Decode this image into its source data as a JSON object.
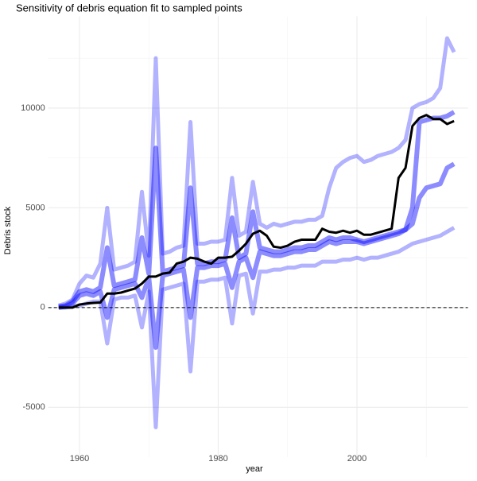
{
  "chart_data": {
    "type": "line",
    "title": "Sensitivity of debris equation fit to sampled points",
    "x_label": "year",
    "y_label": "Debris stock",
    "x": [
      1957,
      1958,
      1959,
      1960,
      1961,
      1962,
      1963,
      1964,
      1965,
      1966,
      1967,
      1968,
      1969,
      1970,
      1971,
      1972,
      1973,
      1974,
      1975,
      1976,
      1977,
      1978,
      1979,
      1980,
      1981,
      1982,
      1983,
      1984,
      1985,
      1986,
      1987,
      1988,
      1989,
      1990,
      1991,
      1992,
      1993,
      1994,
      1995,
      1996,
      1997,
      1998,
      1999,
      2000,
      2001,
      2002,
      2003,
      2004,
      2005,
      2006,
      2007,
      2008,
      2009,
      2010,
      2011,
      2012,
      2013,
      2014
    ],
    "series": [
      {
        "color": "#0000ff",
        "opacity": 0.3,
        "width": 5,
        "values": [
          100,
          200,
          400,
          1200,
          1600,
          1500,
          2200,
          5000,
          1900,
          2000,
          2100,
          2300,
          5800,
          2600,
          12500,
          2700,
          2800,
          3000,
          3100,
          9300,
          3200,
          3200,
          3300,
          3300,
          3400,
          6500,
          3600,
          3800,
          6300,
          4200,
          4000,
          4200,
          4100,
          4200,
          4300,
          4300,
          4400,
          4400,
          4600,
          6000,
          7000,
          7300,
          7500,
          7600,
          7300,
          7400,
          7600,
          7700,
          7800,
          8000,
          8400,
          10000,
          10200,
          10300,
          10500,
          11000,
          13500,
          12800
        ]
      },
      {
        "color": "#0000ff",
        "opacity": 0.3,
        "width": 5,
        "values": [
          0,
          0,
          50,
          100,
          200,
          300,
          300,
          -1800,
          400,
          500,
          500,
          600,
          -1000,
          800,
          -6000,
          900,
          1000,
          1100,
          1200,
          -3200,
          1300,
          1300,
          1400,
          1400,
          1500,
          -800,
          1600,
          1700,
          -300,
          1800,
          1800,
          1900,
          1900,
          2000,
          2000,
          2100,
          2100,
          2100,
          2300,
          2300,
          2300,
          2400,
          2400,
          2500,
          2400,
          2500,
          2500,
          2600,
          2700,
          2800,
          3000,
          3200,
          3300,
          3400,
          3500,
          3600,
          3800,
          4000
        ]
      },
      {
        "color": "#0000ff",
        "opacity": 0.45,
        "width": 6,
        "values": [
          50,
          100,
          300,
          800,
          900,
          800,
          1000,
          3000,
          1100,
          1200,
          1300,
          1400,
          3500,
          1700,
          8000,
          1800,
          1900,
          2000,
          2100,
          6000,
          2200,
          2200,
          2300,
          2300,
          2400,
          4500,
          2500,
          2700,
          4800,
          3000,
          2900,
          2800,
          2800,
          2900,
          3000,
          3000,
          3100,
          3100,
          3300,
          3500,
          3400,
          3500,
          3500,
          3400,
          3300,
          3400,
          3500,
          3600,
          3700,
          3800,
          3900,
          4200,
          5500,
          6000,
          6100,
          6200,
          7000,
          7200
        ]
      },
      {
        "color": "#0000ff",
        "opacity": 0.45,
        "width": 6,
        "values": [
          0,
          50,
          200,
          600,
          700,
          600,
          800,
          -500,
          900,
          1000,
          1100,
          1200,
          500,
          1500,
          -2000,
          1600,
          1700,
          1800,
          1900,
          -500,
          2000,
          2000,
          2100,
          2100,
          2200,
          1000,
          2300,
          2500,
          1500,
          2800,
          2700,
          2600,
          2600,
          2700,
          2800,
          2800,
          2900,
          2900,
          3100,
          3300,
          3200,
          3300,
          3300,
          3300,
          3200,
          3300,
          3400,
          3500,
          3600,
          3700,
          3900,
          5000,
          9300,
          9400,
          9500,
          9500,
          9600,
          9800
        ]
      },
      {
        "color": "#000000",
        "opacity": 1,
        "width": 3,
        "values": [
          0,
          0,
          0,
          150,
          200,
          230,
          250,
          700,
          700,
          750,
          850,
          950,
          1200,
          1550,
          1550,
          1700,
          1750,
          2200,
          2300,
          2500,
          2450,
          2300,
          2200,
          2500,
          2500,
          2550,
          2850,
          3200,
          3700,
          3850,
          3600,
          3050,
          3000,
          3100,
          3300,
          3400,
          3400,
          3400,
          3950,
          3800,
          3750,
          3850,
          3750,
          3850,
          3650,
          3650,
          3750,
          3850,
          3950,
          6500,
          7000,
          9100,
          9500,
          9650,
          9450,
          9450,
          9200,
          9350
        ]
      }
    ],
    "xlim": [
      1955.5,
      2016
    ],
    "xticks": [
      1960,
      1980,
      2000
    ],
    "x_minor_ticks": [
      1970,
      1990,
      2010
    ],
    "ylim": [
      -7500,
      14600
    ],
    "yticks": [
      -5000,
      0,
      5000,
      10000
    ],
    "y_minor_ticks": [
      -2500,
      2500,
      7500,
      12500
    ],
    "hline": 0,
    "grid": true
  }
}
